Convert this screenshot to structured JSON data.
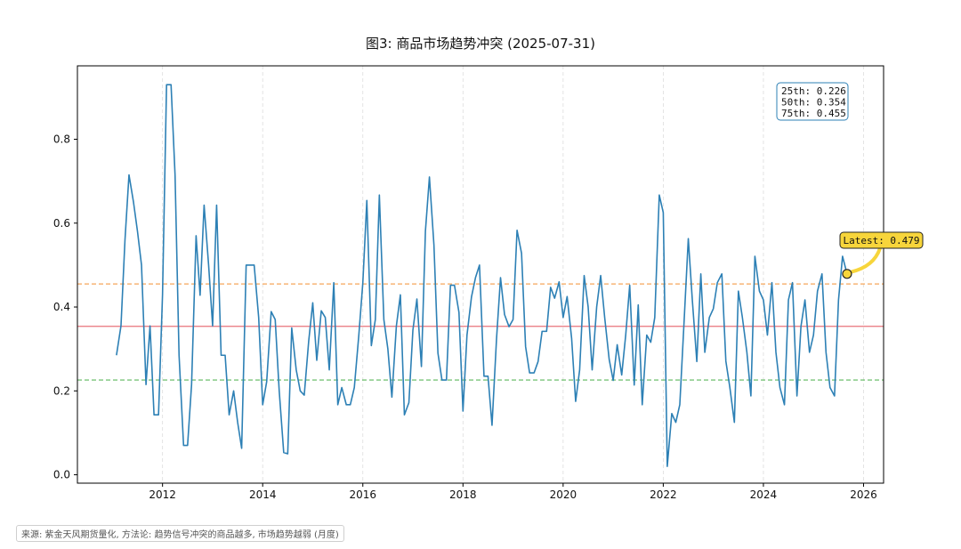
{
  "chart_data": {
    "type": "line",
    "title": "图3: 商品市场趋势冲突 (2025-07-31)",
    "xlabel": "",
    "ylabel": "",
    "x_tick_labels": [
      "2012",
      "2014",
      "2016",
      "2018",
      "2020",
      "2022",
      "2024",
      "2026"
    ],
    "y_tick_labels": [
      "0.0",
      "0.2",
      "0.4",
      "0.6",
      "0.8"
    ],
    "xlim": [
      2010.3,
      2026.4
    ],
    "ylim": [
      -0.02,
      0.975
    ],
    "grid_x": true,
    "series": [
      {
        "values": [
          [
            2011.08,
            0.285
          ],
          [
            2011.17,
            0.355
          ],
          [
            2011.25,
            0.56
          ],
          [
            2011.33,
            0.715
          ],
          [
            2011.42,
            0.65
          ],
          [
            2011.5,
            0.58
          ],
          [
            2011.58,
            0.5
          ],
          [
            2011.67,
            0.215
          ],
          [
            2011.75,
            0.355
          ],
          [
            2011.83,
            0.143
          ],
          [
            2011.92,
            0.143
          ],
          [
            2012.0,
            0.43
          ],
          [
            2012.08,
            0.93
          ],
          [
            2012.17,
            0.93
          ],
          [
            2012.25,
            0.715
          ],
          [
            2012.33,
            0.285
          ],
          [
            2012.42,
            0.07
          ],
          [
            2012.5,
            0.07
          ],
          [
            2012.58,
            0.215
          ],
          [
            2012.67,
            0.57
          ],
          [
            2012.75,
            0.428
          ],
          [
            2012.83,
            0.643
          ],
          [
            2012.92,
            0.5
          ],
          [
            2013.0,
            0.355
          ],
          [
            2013.08,
            0.643
          ],
          [
            2013.17,
            0.285
          ],
          [
            2013.25,
            0.285
          ],
          [
            2013.33,
            0.143
          ],
          [
            2013.42,
            0.2
          ],
          [
            2013.5,
            0.125
          ],
          [
            2013.58,
            0.063
          ],
          [
            2013.67,
            0.5
          ],
          [
            2013.75,
            0.5
          ],
          [
            2013.83,
            0.5
          ],
          [
            2013.92,
            0.375
          ],
          [
            2014.0,
            0.167
          ],
          [
            2014.08,
            0.222
          ],
          [
            2014.17,
            0.389
          ],
          [
            2014.25,
            0.37
          ],
          [
            2014.33,
            0.2
          ],
          [
            2014.42,
            0.053
          ],
          [
            2014.5,
            0.05
          ],
          [
            2014.58,
            0.35
          ],
          [
            2014.67,
            0.25
          ],
          [
            2014.75,
            0.2
          ],
          [
            2014.83,
            0.19
          ],
          [
            2014.92,
            0.32
          ],
          [
            2015.0,
            0.41
          ],
          [
            2015.08,
            0.273
          ],
          [
            2015.17,
            0.391
          ],
          [
            2015.25,
            0.375
          ],
          [
            2015.33,
            0.25
          ],
          [
            2015.42,
            0.458
          ],
          [
            2015.5,
            0.167
          ],
          [
            2015.58,
            0.208
          ],
          [
            2015.67,
            0.167
          ],
          [
            2015.75,
            0.167
          ],
          [
            2015.83,
            0.208
          ],
          [
            2015.92,
            0.333
          ],
          [
            2016.0,
            0.458
          ],
          [
            2016.08,
            0.654
          ],
          [
            2016.17,
            0.308
          ],
          [
            2016.25,
            0.37
          ],
          [
            2016.33,
            0.667
          ],
          [
            2016.42,
            0.37
          ],
          [
            2016.5,
            0.3
          ],
          [
            2016.58,
            0.185
          ],
          [
            2016.67,
            0.355
          ],
          [
            2016.75,
            0.429
          ],
          [
            2016.83,
            0.143
          ],
          [
            2016.92,
            0.172
          ],
          [
            2017.0,
            0.345
          ],
          [
            2017.08,
            0.419
          ],
          [
            2017.17,
            0.258
          ],
          [
            2017.25,
            0.581
          ],
          [
            2017.33,
            0.71
          ],
          [
            2017.42,
            0.548
          ],
          [
            2017.5,
            0.29
          ],
          [
            2017.58,
            0.226
          ],
          [
            2017.67,
            0.226
          ],
          [
            2017.75,
            0.452
          ],
          [
            2017.83,
            0.452
          ],
          [
            2017.92,
            0.387
          ],
          [
            2018.0,
            0.152
          ],
          [
            2018.08,
            0.333
          ],
          [
            2018.17,
            0.424
          ],
          [
            2018.25,
            0.47
          ],
          [
            2018.33,
            0.5
          ],
          [
            2018.42,
            0.235
          ],
          [
            2018.5,
            0.235
          ],
          [
            2018.58,
            0.118
          ],
          [
            2018.67,
            0.324
          ],
          [
            2018.75,
            0.47
          ],
          [
            2018.83,
            0.382
          ],
          [
            2018.92,
            0.353
          ],
          [
            2019.0,
            0.37
          ],
          [
            2019.08,
            0.583
          ],
          [
            2019.17,
            0.528
          ],
          [
            2019.25,
            0.306
          ],
          [
            2019.33,
            0.243
          ],
          [
            2019.42,
            0.243
          ],
          [
            2019.5,
            0.27
          ],
          [
            2019.58,
            0.342
          ],
          [
            2019.67,
            0.342
          ],
          [
            2019.75,
            0.447
          ],
          [
            2019.83,
            0.421
          ],
          [
            2019.92,
            0.46
          ],
          [
            2020.0,
            0.375
          ],
          [
            2020.08,
            0.425
          ],
          [
            2020.17,
            0.325
          ],
          [
            2020.25,
            0.175
          ],
          [
            2020.33,
            0.25
          ],
          [
            2020.42,
            0.475
          ],
          [
            2020.5,
            0.4
          ],
          [
            2020.58,
            0.25
          ],
          [
            2020.67,
            0.4
          ],
          [
            2020.75,
            0.475
          ],
          [
            2020.83,
            0.375
          ],
          [
            2020.92,
            0.275
          ],
          [
            2021.0,
            0.225
          ],
          [
            2021.08,
            0.31
          ],
          [
            2021.17,
            0.238
          ],
          [
            2021.25,
            0.333
          ],
          [
            2021.33,
            0.452
          ],
          [
            2021.42,
            0.214
          ],
          [
            2021.5,
            0.405
          ],
          [
            2021.58,
            0.167
          ],
          [
            2021.67,
            0.333
          ],
          [
            2021.75,
            0.316
          ],
          [
            2021.83,
            0.375
          ],
          [
            2021.92,
            0.667
          ],
          [
            2022.0,
            0.625
          ],
          [
            2022.08,
            0.02
          ],
          [
            2022.17,
            0.146
          ],
          [
            2022.25,
            0.125
          ],
          [
            2022.33,
            0.167
          ],
          [
            2022.42,
            0.375
          ],
          [
            2022.5,
            0.563
          ],
          [
            2022.58,
            0.417
          ],
          [
            2022.67,
            0.27
          ],
          [
            2022.75,
            0.479
          ],
          [
            2022.83,
            0.292
          ],
          [
            2022.92,
            0.375
          ],
          [
            2023.0,
            0.396
          ],
          [
            2023.08,
            0.458
          ],
          [
            2023.17,
            0.479
          ],
          [
            2023.25,
            0.271
          ],
          [
            2023.33,
            0.208
          ],
          [
            2023.42,
            0.125
          ],
          [
            2023.5,
            0.438
          ],
          [
            2023.58,
            0.375
          ],
          [
            2023.67,
            0.292
          ],
          [
            2023.75,
            0.188
          ],
          [
            2023.83,
            0.521
          ],
          [
            2023.92,
            0.438
          ],
          [
            2024.0,
            0.417
          ],
          [
            2024.08,
            0.333
          ],
          [
            2024.17,
            0.458
          ],
          [
            2024.25,
            0.292
          ],
          [
            2024.33,
            0.208
          ],
          [
            2024.42,
            0.167
          ],
          [
            2024.5,
            0.417
          ],
          [
            2024.58,
            0.458
          ],
          [
            2024.67,
            0.188
          ],
          [
            2024.75,
            0.354
          ],
          [
            2024.83,
            0.417
          ],
          [
            2024.92,
            0.292
          ],
          [
            2025.0,
            0.333
          ],
          [
            2025.08,
            0.438
          ],
          [
            2025.17,
            0.479
          ],
          [
            2025.25,
            0.292
          ],
          [
            2025.33,
            0.208
          ],
          [
            2025.42,
            0.188
          ],
          [
            2025.5,
            0.417
          ],
          [
            2025.58,
            0.521
          ],
          [
            2025.67,
            0.479
          ]
        ]
      }
    ],
    "reference_lines": [
      {
        "label": "75th",
        "value": 0.455,
        "color": "#f5a55a",
        "style": "dashed"
      },
      {
        "label": "50th",
        "value": 0.354,
        "color": "#e8737a",
        "style": "solid"
      },
      {
        "label": "25th",
        "value": 0.226,
        "color": "#5cb85c",
        "style": "dashed"
      }
    ],
    "stats_box": [
      "25th: 0.226",
      "50th: 0.354",
      "75th: 0.455"
    ],
    "latest": {
      "label": "Latest: 0.479",
      "x": 2025.67,
      "y": 0.479
    },
    "colors": {
      "line": "#2d80b5",
      "latest_marker": "#f7d53b",
      "stats_border": "#2d80b5"
    },
    "legend": "none"
  },
  "footer": {
    "source_note": "来源: 紫金天风期货量化, 方法论: 趋势信号冲突的商品越多, 市场趋势越弱 (月度)"
  }
}
